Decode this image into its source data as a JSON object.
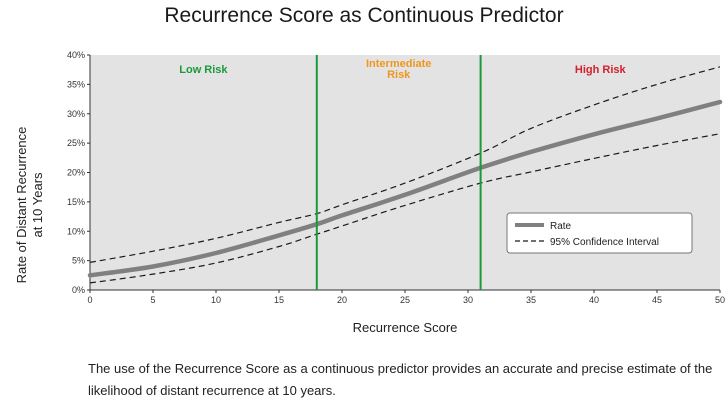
{
  "chart_data": {
    "type": "line",
    "title": "Recurrence Score as Continuous Predictor",
    "xlabel": "Recurrence Score",
    "ylabel_lines": [
      "Rate of Distant Recurrence",
      "at 10 Years"
    ],
    "xlim": [
      0,
      50
    ],
    "ylim": [
      0,
      40
    ],
    "x_ticks": [
      "0",
      "5",
      "10",
      "15",
      "20",
      "25",
      "30",
      "35",
      "40",
      "45",
      "50"
    ],
    "y_ticks": [
      "0%",
      "5%",
      "10%",
      "15%",
      "20%",
      "25%",
      "30%",
      "35%",
      "40%"
    ],
    "grid": false,
    "x": [
      0,
      5,
      10,
      15,
      18,
      20,
      25,
      31,
      35,
      40,
      45,
      50
    ],
    "series": [
      {
        "name": "Rate",
        "values": [
          2.5,
          4.0,
          6.3,
          9.3,
          11.2,
          12.7,
          16.2,
          20.8,
          23.5,
          26.5,
          29.2,
          32.0
        ],
        "color": "#808080",
        "style": "solid"
      },
      {
        "name": "95% Confidence Interval",
        "values": [
          4.7,
          6.6,
          8.8,
          11.5,
          13.0,
          14.5,
          18.2,
          23.3,
          27.5,
          31.5,
          35.0,
          38.0
        ],
        "color": "#1a1a1a",
        "style": "dashed"
      },
      {
        "name": "",
        "values": [
          1.2,
          2.7,
          4.6,
          7.4,
          9.5,
          10.9,
          14.4,
          18.2,
          20.1,
          22.4,
          24.6,
          26.6
        ],
        "color": "#1a1a1a",
        "style": "dashed"
      }
    ],
    "zone_boundaries": [
      18,
      31
    ],
    "zones": [
      {
        "label_lines": [
          "Low Risk"
        ],
        "x_from": 0,
        "x_to": 18,
        "color": "#1a9a3c"
      },
      {
        "label_lines": [
          "Intermediate",
          "Risk"
        ],
        "x_from": 18,
        "x_to": 31,
        "color": "#f0961e"
      },
      {
        "label_lines": [
          "High Risk"
        ],
        "x_from": 31,
        "x_to": 50,
        "color": "#d4202a"
      }
    ],
    "boundary_color": "#1a9a3c",
    "plot_background": "#e3e3e3",
    "legend": {
      "placement": "lower-right",
      "entries": [
        "Rate",
        "95% Confidence Interval"
      ]
    }
  },
  "footnote": "The use of the Recurrence Score as a continuous predictor provides an accurate and precise estimate of the likelihood of distant recurrence at 10 years."
}
